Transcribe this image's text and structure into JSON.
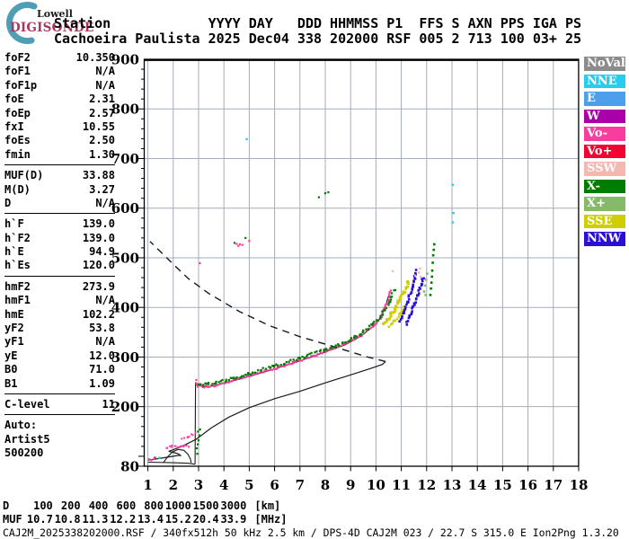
{
  "logo": {
    "lowell": "Lowell",
    "digisonde": "DIGISONDE"
  },
  "header": {
    "row1": "Station            YYYY DAY   DDD HHMMSS P1  FFS S AXN PPS IGA PS",
    "row2": "Cachoeira Paulista 2025 Dec04 338 202000 RSF 005 2 713 100 03+ 25"
  },
  "left_panel": {
    "groups": [
      {
        "rows": [
          {
            "label": "foF2",
            "value": "10.350"
          },
          {
            "label": "foF1",
            "value": "N/A"
          },
          {
            "label": "foF1p",
            "value": "N/A"
          },
          {
            "label": "foE",
            "value": "2.31"
          },
          {
            "label": "foEp",
            "value": "2.57"
          },
          {
            "label": "fxI",
            "value": "10.55"
          },
          {
            "label": "foEs",
            "value": "2.50"
          },
          {
            "label": "fmin",
            "value": "1.30"
          }
        ]
      },
      {
        "rows": [
          {
            "label": "MUF(D)",
            "value": "33.88"
          },
          {
            "label": "M(D)",
            "value": "3.27"
          },
          {
            "label": "D",
            "value": "N/A"
          }
        ]
      },
      {
        "rows": [
          {
            "label": "h`F",
            "value": "139.0"
          },
          {
            "label": "h`F2",
            "value": "139.0"
          },
          {
            "label": "h`E",
            "value": "94.9"
          },
          {
            "label": "h`Es",
            "value": "120.0"
          }
        ]
      },
      {
        "rows": [
          {
            "label": "hmF2",
            "value": "273.9"
          },
          {
            "label": "hmF1",
            "value": "N/A"
          },
          {
            "label": "hmE",
            "value": "102.2"
          },
          {
            "label": "yF2",
            "value": "53.8"
          },
          {
            "label": "yF1",
            "value": "N/A"
          },
          {
            "label": "yE",
            "value": "12.0"
          },
          {
            "label": "B0",
            "value": "71.0"
          },
          {
            "label": "B1",
            "value": "1.09"
          }
        ]
      },
      {
        "rows": [
          {
            "label": "C-level",
            "value": "11"
          }
        ]
      }
    ],
    "footer": [
      "Auto:",
      "Artist5",
      "500200"
    ]
  },
  "legend": {
    "items": [
      {
        "label": "NoVal",
        "color": "#8C8C8C"
      },
      {
        "label": "NNE",
        "color": "#29CBEF"
      },
      {
        "label": "E",
        "color": "#4D9FEC"
      },
      {
        "label": "W",
        "color": "#AA00AA"
      },
      {
        "label": "Vo-",
        "color": "#FA3C9F"
      },
      {
        "label": "Vo+",
        "color": "#F50030"
      },
      {
        "label": "SSW",
        "color": "#F5B8B0"
      },
      {
        "label": "X-",
        "color": "#007D00"
      },
      {
        "label": "X+",
        "color": "#86B96A"
      },
      {
        "label": "SSE",
        "color": "#CFCF00"
      },
      {
        "label": "NNW",
        "color": "#2A0FD9"
      }
    ]
  },
  "bottom": {
    "rows": [
      {
        "label": "D",
        "values": [
          "100",
          "200",
          "400",
          "600",
          "800",
          "1000",
          "1500",
          "3000"
        ],
        "unit": "[km]"
      },
      {
        "label": "MUF",
        "values": [
          "10.7",
          "10.8",
          "11.3",
          "12.2",
          "13.4",
          "15.2",
          "20.4",
          "33.9"
        ],
        "unit": "[MHz]"
      }
    ]
  },
  "footer": {
    "status": "CAJ2M_2025338202000.RSF / 340fx512h 50 kHz 2.5 km / DPS-4D CAJ2M 023 / 22.7 S 315.0 E Ion2Png 1.3.20"
  },
  "chart_data": {
    "type": "scatter",
    "xlim": [
      1,
      18
    ],
    "ylim": [
      80,
      900
    ],
    "grid": true,
    "x_ticks": [
      1,
      2,
      3,
      4,
      5,
      6,
      7,
      8,
      9,
      10,
      11,
      12,
      13,
      14,
      15,
      16,
      17,
      18
    ],
    "y_ticks": [
      {
        "label": "900",
        "value": 900
      },
      {
        "label": "800",
        "value": 800
      },
      {
        "label": "700",
        "value": 700
      },
      {
        "label": "600",
        "value": 600
      },
      {
        "label": "500",
        "value": 500
      },
      {
        "label": "400",
        "value": 400
      },
      {
        "label": "300",
        "value": 300
      },
      {
        "label": "200",
        "value": 200
      },
      {
        "label": "80",
        "value": 80
      }
    ],
    "series": [
      {
        "name": "topside-profile-dashed",
        "style": "dash",
        "color": "#1a1a1a",
        "width": 1.4,
        "points": [
          [
            10.38,
            291
          ],
          [
            9.6,
            301
          ],
          [
            8.2,
            323
          ],
          [
            7.0,
            341
          ],
          [
            5.8,
            363
          ],
          [
            4.6,
            392
          ],
          [
            3.4,
            428
          ],
          [
            2.6,
            458
          ],
          [
            2.0,
            487
          ],
          [
            1.5,
            512
          ],
          [
            1.08,
            533
          ]
        ]
      },
      {
        "name": "true-height-profile-F",
        "style": "line",
        "color": "#1a1a1a",
        "width": 1.2,
        "points": [
          [
            1.82,
            110
          ],
          [
            2.3,
            119
          ],
          [
            2.9,
            134
          ],
          [
            3.5,
            157
          ],
          [
            4.2,
            179
          ],
          [
            5.0,
            198
          ],
          [
            6.0,
            216
          ],
          [
            7.0,
            231
          ],
          [
            8.0,
            248
          ],
          [
            9.0,
            264
          ],
          [
            9.8,
            277
          ],
          [
            10.25,
            285
          ],
          [
            10.38,
            291
          ]
        ]
      },
      {
        "name": "true-height-profile-E",
        "style": "line",
        "color": "#1a1a1a",
        "width": 1.2,
        "points": [
          [
            1.0,
            92
          ],
          [
            1.5,
            96
          ],
          [
            2.0,
            100
          ],
          [
            2.25,
            102
          ],
          [
            2.31,
            101
          ],
          [
            2.2,
            105
          ],
          [
            2.0,
            108
          ],
          [
            1.82,
            110
          ]
        ]
      },
      {
        "name": "fitted-trace-E",
        "style": "line",
        "color": "#1a1a1a",
        "width": 1.1,
        "points": [
          [
            1.0,
            88
          ],
          [
            2.0,
            87
          ],
          [
            2.6,
            86
          ],
          [
            2.86,
            84
          ]
        ]
      },
      {
        "name": "fitted-trace-E-loop",
        "style": "line",
        "color": "#1a1a1a",
        "width": 1.1,
        "points": [
          [
            1.62,
            88
          ],
          [
            1.78,
            99
          ],
          [
            1.98,
            109
          ],
          [
            2.2,
            114
          ],
          [
            2.42,
            112
          ],
          [
            2.58,
            104
          ],
          [
            2.68,
            94
          ],
          [
            2.71,
            87
          ]
        ]
      },
      {
        "name": "fitted-trace-F",
        "style": "line",
        "color": "#1a1a1a",
        "width": 1.1,
        "points": [
          [
            2.86,
            84
          ],
          [
            2.88,
            248
          ],
          [
            2.95,
            245
          ],
          [
            3.1,
            241
          ],
          [
            3.35,
            240
          ],
          [
            3.7,
            243
          ],
          [
            4.2,
            250
          ],
          [
            5.0,
            261
          ],
          [
            6.0,
            276
          ],
          [
            7.0,
            292
          ],
          [
            8.0,
            310
          ],
          [
            8.8,
            325
          ],
          [
            9.4,
            342
          ],
          [
            9.9,
            362
          ],
          [
            10.2,
            381
          ],
          [
            10.38,
            403
          ],
          [
            10.5,
            424
          ]
        ]
      },
      {
        "name": "O-trace",
        "style": "dots",
        "color": "#FA3C9F",
        "size": 2.2,
        "step": 2,
        "jitter": 1.1,
        "points": [
          [
            2.9,
            253
          ],
          [
            2.92,
            245
          ],
          [
            3.0,
            242
          ],
          [
            3.2,
            240
          ],
          [
            3.6,
            242
          ],
          [
            4.2,
            250
          ],
          [
            5.0,
            262
          ],
          [
            6.0,
            277
          ],
          [
            7.0,
            293
          ],
          [
            8.0,
            311
          ],
          [
            8.8,
            326
          ],
          [
            9.4,
            343
          ],
          [
            9.9,
            363
          ],
          [
            10.2,
            382
          ],
          [
            10.45,
            408
          ],
          [
            10.6,
            433
          ]
        ]
      },
      {
        "name": "X-trace",
        "style": "dots",
        "color": "#007D00",
        "size": 2.3,
        "step": 2.4,
        "jitter": 1.3,
        "points": [
          [
            3.0,
            247
          ],
          [
            3.15,
            244
          ],
          [
            3.35,
            246
          ],
          [
            3.7,
            248
          ],
          [
            4.3,
            256
          ],
          [
            5.0,
            267
          ],
          [
            6.0,
            282
          ],
          [
            7.0,
            297
          ],
          [
            8.0,
            315
          ],
          [
            8.8,
            330
          ],
          [
            9.4,
            347
          ],
          [
            9.9,
            366
          ],
          [
            10.25,
            386
          ],
          [
            10.55,
            412
          ],
          [
            10.72,
            436
          ]
        ]
      },
      {
        "name": "Es-trace",
        "style": "dots",
        "color": "#FA3C9F",
        "size": 2,
        "step": 2.6,
        "jitter": 1.2,
        "points": [
          [
            1.72,
            116
          ],
          [
            1.95,
            120
          ],
          [
            2.2,
            119
          ],
          [
            2.45,
            121
          ],
          [
            2.62,
            119
          ]
        ]
      },
      {
        "name": "Es-trace-upper",
        "style": "dots",
        "color": "#FA3C9F",
        "size": 2,
        "step": 2.8,
        "jitter": 1.1,
        "points": [
          [
            2.35,
            134
          ],
          [
            2.55,
            139
          ],
          [
            2.75,
            143
          ],
          [
            2.86,
            146
          ]
        ]
      },
      {
        "name": "F-foot-green",
        "style": "points",
        "color": "#007D00",
        "size": 2.3,
        "points": [
          [
            2.93,
            116
          ],
          [
            2.97,
            124
          ],
          [
            3.0,
            132
          ],
          [
            3.03,
            142
          ],
          [
            2.98,
            150
          ],
          [
            3.06,
            154
          ],
          [
            2.95,
            105
          ]
        ]
      },
      {
        "name": "SSE-wing",
        "style": "dots",
        "color": "#CFCF00",
        "size": 3,
        "step": 2,
        "jitter": 1.5,
        "points": [
          [
            10.32,
            368
          ],
          [
            10.5,
            378
          ],
          [
            10.7,
            392
          ],
          [
            10.9,
            410
          ],
          [
            11.1,
            430
          ],
          [
            11.3,
            452
          ]
        ]
      },
      {
        "name": "SSE-wing-2",
        "style": "dots",
        "color": "#CFCF00",
        "size": 2.6,
        "step": 2.4,
        "jitter": 1.2,
        "points": [
          [
            10.5,
            362
          ],
          [
            10.72,
            371
          ],
          [
            10.95,
            385
          ],
          [
            11.15,
            402
          ]
        ]
      },
      {
        "name": "NNW-wing",
        "style": "dots",
        "color": "#2A0FD9",
        "size": 2.6,
        "step": 2.2,
        "jitter": 1,
        "points": [
          [
            10.95,
            372
          ],
          [
            11.1,
            390
          ],
          [
            11.25,
            412
          ],
          [
            11.4,
            436
          ],
          [
            11.52,
            458
          ],
          [
            11.6,
            474
          ]
        ]
      },
      {
        "name": "NNW-wing-2",
        "style": "dots",
        "color": "#2A0FD9",
        "size": 2.6,
        "step": 2.2,
        "jitter": 1,
        "points": [
          [
            11.2,
            366
          ],
          [
            11.35,
            382
          ],
          [
            11.5,
            404
          ],
          [
            11.65,
            426
          ],
          [
            11.8,
            448
          ],
          [
            11.87,
            460
          ]
        ]
      },
      {
        "name": "Xplus-wing",
        "style": "points",
        "color": "#86B96A",
        "size": 2.6,
        "points": [
          [
            11.9,
            432
          ],
          [
            11.94,
            444
          ],
          [
            11.98,
            456
          ],
          [
            12.02,
            468
          ],
          [
            11.96,
            425
          ]
        ]
      },
      {
        "name": "Xminus-wing",
        "style": "points",
        "color": "#007D00",
        "size": 2.6,
        "points": [
          [
            12.15,
            425
          ],
          [
            12.17,
            438
          ],
          [
            12.19,
            450
          ],
          [
            12.21,
            462
          ],
          [
            12.22,
            474
          ],
          [
            12.24,
            490
          ],
          [
            12.26,
            505
          ],
          [
            12.28,
            516
          ],
          [
            12.3,
            527
          ]
        ]
      },
      {
        "name": "NNE-noise",
        "style": "points",
        "color": "#29CBEF",
        "size": 2.4,
        "points": [
          [
            4.9,
            739
          ],
          [
            13.03,
            647
          ],
          [
            13.06,
            590
          ],
          [
            13.03,
            571
          ],
          [
            1.45,
            97
          ]
        ]
      },
      {
        "name": "Vo-plus-noise",
        "style": "points",
        "color": "#F50030",
        "size": 2.4,
        "points": [
          [
            1.28,
            97
          ]
        ]
      },
      {
        "name": "Vo-minus-noise",
        "style": "points",
        "color": "#FA3C9F",
        "size": 2.2,
        "points": [
          [
            1.05,
            94
          ],
          [
            1.14,
            92
          ],
          [
            1.24,
            95
          ],
          [
            3.05,
            489
          ],
          [
            4.5,
            528
          ],
          [
            4.57,
            524
          ],
          [
            4.63,
            527
          ],
          [
            4.73,
            526
          ],
          [
            5.0,
            534
          ]
        ]
      },
      {
        "name": "X-minus-noise",
        "style": "points",
        "color": "#007D00",
        "size": 2.2,
        "points": [
          [
            4.42,
            530
          ],
          [
            4.85,
            540
          ],
          [
            7.75,
            622
          ],
          [
            8.0,
            630
          ],
          [
            8.12,
            632
          ]
        ]
      },
      {
        "name": "SSW-noise",
        "style": "points",
        "color": "#F5B8B0",
        "size": 2.4,
        "points": [
          [
            10.66,
            473
          ],
          [
            11.55,
            464
          ],
          [
            11.7,
            470
          ],
          [
            11.74,
            478
          ],
          [
            11.77,
            462
          ]
        ]
      }
    ]
  }
}
